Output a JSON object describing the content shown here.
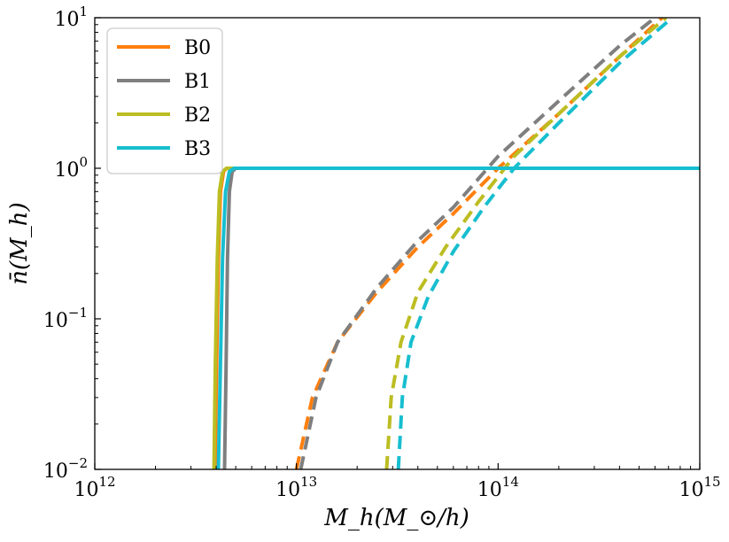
{
  "chart_data": {
    "type": "line",
    "title": "",
    "xlabel": "M_h(M_⊙/h)",
    "ylabel": "n̄(M_h)",
    "xscale": "log",
    "yscale": "log",
    "xlim": [
      1000000000000.0,
      1000000000000000.0
    ],
    "ylim": [
      0.01,
      10
    ],
    "x_ticks": [
      {
        "base": "10",
        "exp": "12"
      },
      {
        "base": "10",
        "exp": "13"
      },
      {
        "base": "10",
        "exp": "14"
      },
      {
        "base": "10",
        "exp": "15"
      }
    ],
    "y_ticks": [
      {
        "base": "10",
        "exp": "−2"
      },
      {
        "base": "10",
        "exp": "−1"
      },
      {
        "base": "10",
        "exp": "0"
      },
      {
        "base": "10",
        "exp": "1"
      }
    ],
    "legend_position": "top-left",
    "series": [
      {
        "name": "B0",
        "color": "#ff7f0e",
        "central": {
          "x": [
            3950000000000.0,
            4020000000000.0,
            4100000000000.0,
            4200000000000.0,
            4350000000000.0,
            4500000000000.0,
            1000000000000000.0
          ],
          "y": [
            0.01,
            0.05,
            0.25,
            0.7,
            0.95,
            1.0,
            1.0
          ]
        },
        "satellite": {
          "x": [
            10000000000000.0,
            12000000000000.0,
            16000000000000.0,
            25000000000000.0,
            40000000000000.0,
            60000000000000.0,
            100000000000000.0,
            200000000000000.0,
            400000000000000.0,
            650000000000000.0
          ],
          "y": [
            0.01,
            0.03,
            0.07,
            0.15,
            0.3,
            0.5,
            1.0,
            2.3,
            5.5,
            10
          ]
        }
      },
      {
        "name": "B1",
        "color": "#7f7f7f",
        "central": {
          "x": [
            4400000000000.0,
            4480000000000.0,
            4550000000000.0,
            4650000000000.0,
            4800000000000.0,
            5000000000000.0,
            1000000000000000.0
          ],
          "y": [
            0.01,
            0.05,
            0.25,
            0.7,
            0.95,
            1.0,
            1.0
          ]
        },
        "satellite": {
          "x": [
            10500000000000.0,
            12500000000000.0,
            16000000000000.0,
            25000000000000.0,
            40000000000000.0,
            60000000000000.0,
            100000000000000.0,
            200000000000000.0,
            400000000000000.0,
            600000000000000.0
          ],
          "y": [
            0.01,
            0.03,
            0.07,
            0.16,
            0.33,
            0.55,
            1.2,
            2.8,
            6.5,
            10
          ]
        }
      },
      {
        "name": "B2",
        "color": "#bcbd22",
        "central": {
          "x": [
            3900000000000.0,
            3960000000000.0,
            4050000000000.0,
            4150000000000.0,
            4300000000000.0,
            4500000000000.0,
            1000000000000000.0
          ],
          "y": [
            0.01,
            0.05,
            0.25,
            0.7,
            0.95,
            1.0,
            1.0
          ]
        },
        "satellite": {
          "x": [
            28000000000000.0,
            29500000000000.0,
            33000000000000.0,
            40000000000000.0,
            55000000000000.0,
            80000000000000.0,
            120000000000000.0,
            200000000000000.0,
            400000000000000.0,
            680000000000000.0
          ],
          "y": [
            0.01,
            0.03,
            0.07,
            0.15,
            0.3,
            0.6,
            1.2,
            2.3,
            5.5,
            10
          ]
        }
      },
      {
        "name": "B3",
        "color": "#17becf",
        "central": {
          "x": [
            4100000000000.0,
            4200000000000.0,
            4300000000000.0,
            4450000000000.0,
            4650000000000.0,
            4900000000000.0,
            1000000000000000.0
          ],
          "y": [
            0.01,
            0.05,
            0.25,
            0.7,
            0.95,
            1.0,
            1.0
          ]
        },
        "satellite": {
          "x": [
            32000000000000.0,
            33500000000000.0,
            37000000000000.0,
            45000000000000.0,
            60000000000000.0,
            85000000000000.0,
            120000000000000.0,
            200000000000000.0,
            400000000000000.0,
            730000000000000.0
          ],
          "y": [
            0.01,
            0.03,
            0.07,
            0.14,
            0.28,
            0.55,
            1.0,
            2.0,
            5.0,
            10
          ]
        }
      }
    ]
  }
}
